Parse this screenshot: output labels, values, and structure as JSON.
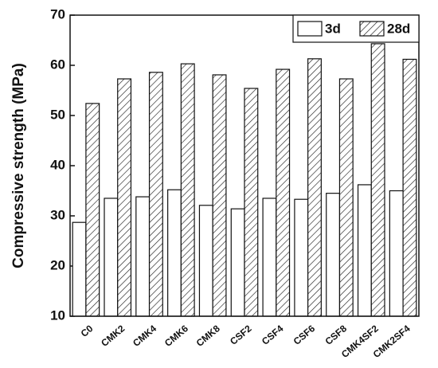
{
  "chart_data": {
    "type": "bar",
    "ylabel": "Compressive strength (MPa)",
    "categories": [
      "C0",
      "CMK2",
      "CMK4",
      "CMK6",
      "CMK8",
      "CSF2",
      "CSF4",
      "CSF6",
      "CSF8",
      "CMK4SF2",
      "CMK2SF4"
    ],
    "series": [
      {
        "name": "3d",
        "color": "#ffffff",
        "pattern": "none",
        "values": [
          28.7,
          33.5,
          33.8,
          35.2,
          32.1,
          31.4,
          33.5,
          33.3,
          34.5,
          36.2,
          35.0
        ]
      },
      {
        "name": "28d",
        "color": "#ffffff",
        "pattern": "hatch",
        "values": [
          52.4,
          57.3,
          58.6,
          60.3,
          58.1,
          55.4,
          59.2,
          61.3,
          57.3,
          64.3,
          61.2
        ]
      }
    ],
    "ylim": [
      10,
      70
    ],
    "yticks": [
      10,
      20,
      30,
      40,
      50,
      60,
      70
    ],
    "legend": "top-right"
  }
}
